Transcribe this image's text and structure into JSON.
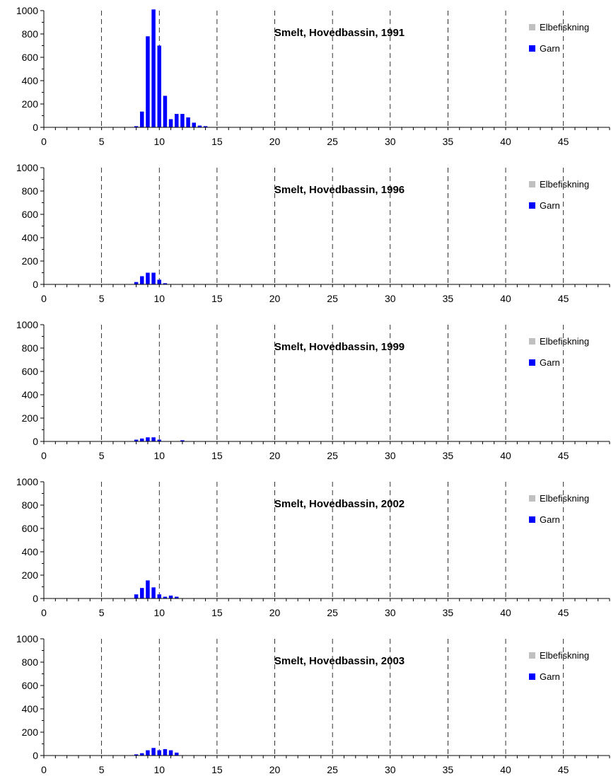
{
  "colors": {
    "garn": "#0000ff",
    "elbefiskning": "#c0c0c0",
    "axis": "#000000",
    "grid": "#000000"
  },
  "chart_data": [
    {
      "type": "bar",
      "title": "Smelt, Hovedbassin, 1991",
      "xlim": [
        0,
        49
      ],
      "ylim": [
        0,
        1000
      ],
      "xticks": [
        "0",
        "5",
        "10",
        "15",
        "20",
        "25",
        "30",
        "35",
        "40",
        "45"
      ],
      "yticks": [
        "0",
        "200",
        "400",
        "600",
        "800",
        "1000"
      ],
      "grid": "dashed vertical lines at x = 5, 10, 15, 20, 25, 30, 35, 40, 45",
      "legend_position": "top-right",
      "series": [
        {
          "name": "Elbefiskning",
          "x": [],
          "values": []
        },
        {
          "name": "Garn",
          "x": [
            8,
            8.5,
            9,
            9.5,
            10,
            10.5,
            11,
            11.5,
            12,
            12.5,
            13,
            13.5,
            14
          ],
          "values": [
            10,
            135,
            780,
            1010,
            700,
            270,
            70,
            115,
            115,
            85,
            40,
            15,
            10
          ]
        }
      ]
    },
    {
      "type": "bar",
      "title": "Smelt, Hovedbassin, 1996",
      "xlim": [
        0,
        49
      ],
      "ylim": [
        0,
        1000
      ],
      "xticks": [
        "0",
        "5",
        "10",
        "15",
        "20",
        "25",
        "30",
        "35",
        "40",
        "45"
      ],
      "yticks": [
        "0",
        "200",
        "400",
        "600",
        "800",
        "1000"
      ],
      "grid": "dashed vertical lines at x = 5, 10, 15, 20, 25, 30, 35, 40, 45",
      "legend_position": "top-right",
      "series": [
        {
          "name": "Elbefiskning",
          "x": [],
          "values": []
        },
        {
          "name": "Garn",
          "x": [
            8,
            8.5,
            9,
            9.5,
            10,
            10.5
          ],
          "values": [
            20,
            70,
            100,
            100,
            40,
            10
          ]
        }
      ]
    },
    {
      "type": "bar",
      "title": "Smelt, Hovedbassin, 1999",
      "xlim": [
        0,
        49
      ],
      "ylim": [
        0,
        1000
      ],
      "xticks": [
        "0",
        "5",
        "10",
        "15",
        "20",
        "25",
        "30",
        "35",
        "40",
        "45"
      ],
      "yticks": [
        "0",
        "200",
        "400",
        "600",
        "800",
        "1000"
      ],
      "grid": "dashed vertical lines at x = 5, 10, 15, 20, 25, 30, 35, 40, 45",
      "legend_position": "top-right",
      "series": [
        {
          "name": "Elbefiskning",
          "x": [],
          "values": []
        },
        {
          "name": "Garn",
          "x": [
            8,
            8.5,
            9,
            9.5,
            10,
            12
          ],
          "values": [
            15,
            25,
            35,
            35,
            15,
            10
          ]
        }
      ]
    },
    {
      "type": "bar",
      "title": "Smelt, Hovedbassin, 2002",
      "xlim": [
        0,
        49
      ],
      "ylim": [
        0,
        1000
      ],
      "xticks": [
        "0",
        "5",
        "10",
        "15",
        "20",
        "25",
        "30",
        "35",
        "40",
        "45"
      ],
      "yticks": [
        "0",
        "200",
        "400",
        "600",
        "800",
        "1000"
      ],
      "grid": "dashed vertical lines at x = 5, 10, 15, 20, 25, 30, 35, 40, 45",
      "legend_position": "top-right",
      "series": [
        {
          "name": "Elbefiskning",
          "x": [],
          "values": []
        },
        {
          "name": "Garn",
          "x": [
            8,
            8.5,
            9,
            9.5,
            10,
            10.5,
            11,
            11.5
          ],
          "values": [
            35,
            90,
            155,
            95,
            35,
            15,
            25,
            15
          ]
        }
      ]
    },
    {
      "type": "bar",
      "title": "Smelt, Hovedbassin, 2003",
      "xlim": [
        0,
        49
      ],
      "ylim": [
        0,
        1000
      ],
      "xticks": [
        "0",
        "5",
        "10",
        "15",
        "20",
        "25",
        "30",
        "35",
        "40",
        "45"
      ],
      "yticks": [
        "0",
        "200",
        "400",
        "600",
        "800",
        "1000"
      ],
      "grid": "dashed vertical lines at x = 5, 10, 15, 20, 25, 30, 35, 40, 45",
      "legend_position": "top-right",
      "series": [
        {
          "name": "Elbefiskning",
          "x": [],
          "values": []
        },
        {
          "name": "Garn",
          "x": [
            8,
            8.5,
            9,
            9.5,
            10,
            10.5,
            11,
            11.5
          ],
          "values": [
            10,
            20,
            45,
            65,
            45,
            55,
            45,
            25
          ]
        }
      ]
    }
  ]
}
